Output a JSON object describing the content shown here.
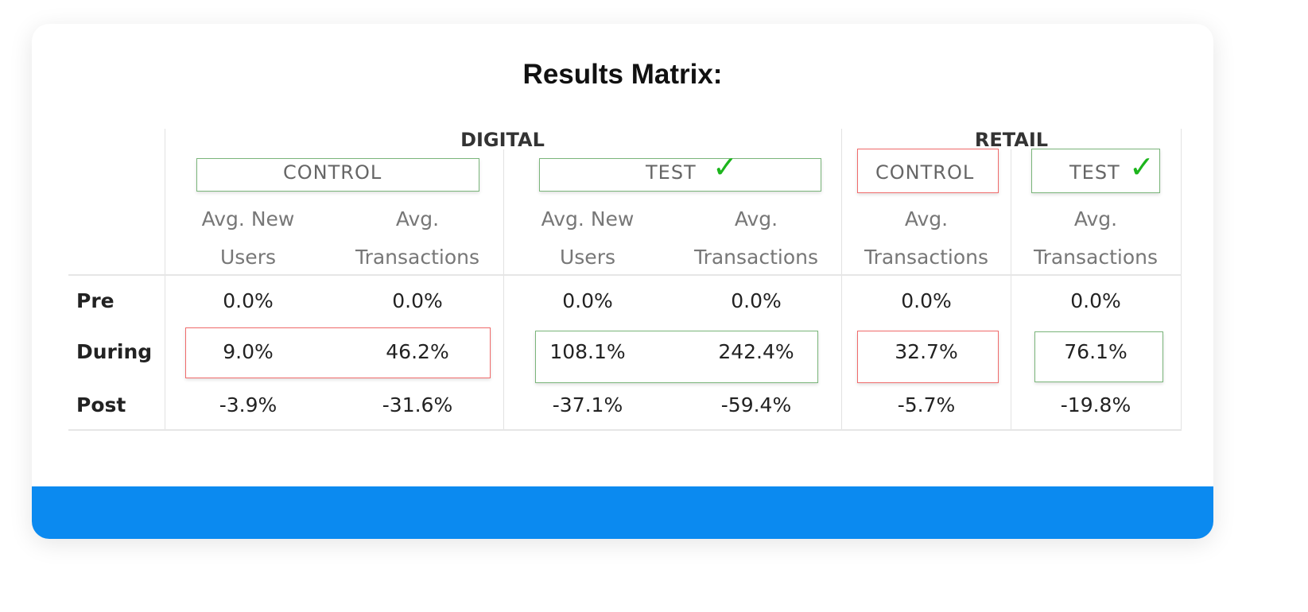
{
  "title": "Results Matrix:",
  "colors": {
    "accent_bar": "#0b8af0",
    "highlight_good": "#7ab57a",
    "highlight_bad": "#f06b6b",
    "check": "#1db51d"
  },
  "groups": [
    {
      "label": "DIGITAL",
      "subgroups": [
        {
          "label": "CONTROL",
          "outcome": "bad",
          "checked": false,
          "columns": [
            "Avg. New Users",
            "Avg. Transactions"
          ]
        },
        {
          "label": "TEST",
          "outcome": "good",
          "checked": true,
          "columns": [
            "Avg. New Users",
            "Avg. Transactions"
          ]
        }
      ]
    },
    {
      "label": "RETAIL",
      "subgroups": [
        {
          "label": "CONTROL",
          "outcome": "bad",
          "checked": false,
          "columns": [
            "Avg. Transactions"
          ]
        },
        {
          "label": "TEST",
          "outcome": "good",
          "checked": true,
          "columns": [
            "Avg. Transactions"
          ]
        }
      ]
    }
  ],
  "header_lines": {
    "new_users": [
      "Avg. New",
      "Users"
    ],
    "transactions": [
      "Avg.",
      "Transactions"
    ]
  },
  "check_glyph": "✓",
  "rows": [
    {
      "label": "Pre",
      "values": [
        "0.0%",
        "0.0%",
        "0.0%",
        "0.0%",
        "0.0%",
        "0.0%"
      ]
    },
    {
      "label": "During",
      "values": [
        "9.0%",
        "46.2%",
        "108.1%",
        "242.4%",
        "32.7%",
        "76.1%"
      ]
    },
    {
      "label": "Post",
      "values": [
        "-3.9%",
        "-31.6%",
        "-37.1%",
        "-59.4%",
        "-5.7%",
        "-19.8%"
      ]
    }
  ]
}
